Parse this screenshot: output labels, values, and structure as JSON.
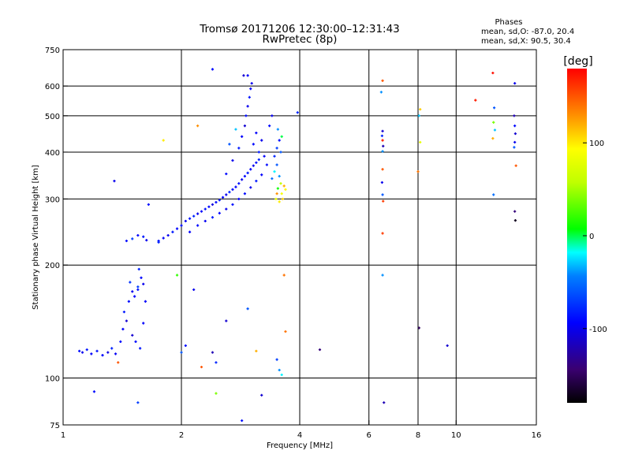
{
  "chart_data": {
    "type": "scatter",
    "title": "Tromsø 20171206 12:30:00–12:31:43",
    "subtitle": "RwPretec (8p)",
    "stats": {
      "heading": "Phases",
      "line1": "mean, sd,O: -87.0, 20.4",
      "line2": "mean, sd,X:  90.5, 30.4"
    },
    "xlabel": "Frequency [MHz]",
    "ylabel": "Stationary phase Virtual Height [km]",
    "xscale": "log",
    "yscale": "log",
    "xlim": [
      1,
      16
    ],
    "ylim": [
      75,
      750
    ],
    "xticks": [
      1,
      2,
      4,
      6,
      8,
      10,
      16
    ],
    "xtick_labels": [
      "1",
      "2",
      "4",
      "6",
      "8",
      "10",
      "16"
    ],
    "yticks": [
      75,
      100,
      200,
      300,
      400,
      500,
      600,
      750
    ],
    "ytick_labels": [
      "75",
      "100",
      "200",
      "300",
      "400",
      "500",
      "600",
      "750"
    ],
    "x_gridlines": [
      1,
      2,
      4,
      6,
      8,
      10,
      16
    ],
    "y_gridlines": [
      100,
      200,
      300,
      400,
      500,
      600
    ],
    "grid": true,
    "colorbar": {
      "label": "[deg]",
      "range": [
        -180,
        180
      ],
      "ticks": [
        100,
        0,
        -100
      ],
      "tick_labels": [
        "100",
        "0",
        "-100"
      ]
    },
    "points": [
      {
        "x": 1.1,
        "y": 118,
        "p": -90
      },
      {
        "x": 1.12,
        "y": 117,
        "p": -100
      },
      {
        "x": 1.15,
        "y": 119,
        "p": -85
      },
      {
        "x": 1.18,
        "y": 116,
        "p": -95
      },
      {
        "x": 1.22,
        "y": 118,
        "p": -88
      },
      {
        "x": 1.26,
        "y": 115,
        "p": -92
      },
      {
        "x": 1.3,
        "y": 117,
        "p": -105
      },
      {
        "x": 1.33,
        "y": 120,
        "p": -80
      },
      {
        "x": 1.36,
        "y": 116,
        "p": -98
      },
      {
        "x": 1.4,
        "y": 125,
        "p": -90
      },
      {
        "x": 1.42,
        "y": 135,
        "p": -95
      },
      {
        "x": 1.45,
        "y": 142,
        "p": -110
      },
      {
        "x": 1.43,
        "y": 150,
        "p": -85
      },
      {
        "x": 1.47,
        "y": 160,
        "p": -90
      },
      {
        "x": 1.5,
        "y": 170,
        "p": -100
      },
      {
        "x": 1.48,
        "y": 180,
        "p": -75
      },
      {
        "x": 1.52,
        "y": 165,
        "p": -95
      },
      {
        "x": 1.55,
        "y": 172,
        "p": -88
      },
      {
        "x": 1.58,
        "y": 185,
        "p": -92
      },
      {
        "x": 1.56,
        "y": 195,
        "p": -80
      },
      {
        "x": 1.6,
        "y": 178,
        "p": -100
      },
      {
        "x": 1.62,
        "y": 160,
        "p": -95
      },
      {
        "x": 1.5,
        "y": 130,
        "p": -110
      },
      {
        "x": 1.53,
        "y": 125,
        "p": -90
      },
      {
        "x": 1.57,
        "y": 120,
        "p": -85
      },
      {
        "x": 1.6,
        "y": 140,
        "p": -95
      },
      {
        "x": 1.45,
        "y": 232,
        "p": -90
      },
      {
        "x": 1.5,
        "y": 235,
        "p": -70
      },
      {
        "x": 1.55,
        "y": 240,
        "p": -95
      },
      {
        "x": 1.6,
        "y": 238,
        "p": -85
      },
      {
        "x": 1.63,
        "y": 233,
        "p": -100
      },
      {
        "x": 1.75,
        "y": 232,
        "p": -90
      },
      {
        "x": 1.8,
        "y": 236,
        "p": -95
      },
      {
        "x": 1.85,
        "y": 240,
        "p": -100
      },
      {
        "x": 1.9,
        "y": 245,
        "p": -85
      },
      {
        "x": 1.95,
        "y": 250,
        "p": -92
      },
      {
        "x": 2.0,
        "y": 255,
        "p": -90
      },
      {
        "x": 2.05,
        "y": 262,
        "p": -98
      },
      {
        "x": 2.1,
        "y": 266,
        "p": -86
      },
      {
        "x": 2.15,
        "y": 270,
        "p": -80
      },
      {
        "x": 2.2,
        "y": 274,
        "p": -100
      },
      {
        "x": 2.25,
        "y": 278,
        "p": -95
      },
      {
        "x": 2.3,
        "y": 282,
        "p": -88
      },
      {
        "x": 2.35,
        "y": 286,
        "p": -92
      },
      {
        "x": 2.4,
        "y": 290,
        "p": -105
      },
      {
        "x": 2.45,
        "y": 294,
        "p": -90
      },
      {
        "x": 2.5,
        "y": 298,
        "p": -85
      },
      {
        "x": 2.55,
        "y": 303,
        "p": -95
      },
      {
        "x": 2.6,
        "y": 308,
        "p": -100
      },
      {
        "x": 2.65,
        "y": 313,
        "p": -80
      },
      {
        "x": 2.7,
        "y": 318,
        "p": -90
      },
      {
        "x": 2.75,
        "y": 323,
        "p": -95
      },
      {
        "x": 2.8,
        "y": 330,
        "p": -88
      },
      {
        "x": 2.85,
        "y": 338,
        "p": -100
      },
      {
        "x": 2.9,
        "y": 345,
        "p": -92
      },
      {
        "x": 2.95,
        "y": 352,
        "p": -85
      },
      {
        "x": 3.0,
        "y": 360,
        "p": -95
      },
      {
        "x": 3.05,
        "y": 368,
        "p": -100
      },
      {
        "x": 3.1,
        "y": 375,
        "p": -90
      },
      {
        "x": 3.15,
        "y": 382,
        "p": -80
      },
      {
        "x": 2.1,
        "y": 245,
        "p": -95
      },
      {
        "x": 2.2,
        "y": 255,
        "p": -90
      },
      {
        "x": 2.3,
        "y": 262,
        "p": -98
      },
      {
        "x": 2.4,
        "y": 268,
        "p": -85
      },
      {
        "x": 2.5,
        "y": 275,
        "p": -92
      },
      {
        "x": 2.6,
        "y": 282,
        "p": -100
      },
      {
        "x": 2.7,
        "y": 290,
        "p": -88
      },
      {
        "x": 2.8,
        "y": 300,
        "p": -95
      },
      {
        "x": 2.9,
        "y": 310,
        "p": -90
      },
      {
        "x": 3.0,
        "y": 322,
        "p": -100
      },
      {
        "x": 3.1,
        "y": 335,
        "p": -85
      },
      {
        "x": 3.2,
        "y": 348,
        "p": -95
      },
      {
        "x": 2.6,
        "y": 350,
        "p": -90
      },
      {
        "x": 2.7,
        "y": 380,
        "p": -100
      },
      {
        "x": 2.8,
        "y": 410,
        "p": -85
      },
      {
        "x": 2.85,
        "y": 440,
        "p": -95
      },
      {
        "x": 2.9,
        "y": 470,
        "p": -110
      },
      {
        "x": 2.92,
        "y": 500,
        "p": -90
      },
      {
        "x": 2.95,
        "y": 530,
        "p": -100
      },
      {
        "x": 2.98,
        "y": 560,
        "p": -85
      },
      {
        "x": 3.0,
        "y": 590,
        "p": -95
      },
      {
        "x": 3.02,
        "y": 610,
        "p": -100
      },
      {
        "x": 2.88,
        "y": 640,
        "p": -110
      },
      {
        "x": 2.95,
        "y": 640,
        "p": -95
      },
      {
        "x": 3.05,
        "y": 420,
        "p": -90
      },
      {
        "x": 3.1,
        "y": 450,
        "p": -95
      },
      {
        "x": 3.15,
        "y": 400,
        "p": -85
      },
      {
        "x": 3.2,
        "y": 430,
        "p": -100
      },
      {
        "x": 3.25,
        "y": 390,
        "p": -95
      },
      {
        "x": 3.3,
        "y": 370,
        "p": -90
      },
      {
        "x": 2.75,
        "y": 460,
        "p": -30
      },
      {
        "x": 2.65,
        "y": 420,
        "p": -60
      },
      {
        "x": 3.4,
        "y": 340,
        "p": -50
      },
      {
        "x": 3.45,
        "y": 355,
        "p": -20
      },
      {
        "x": 3.5,
        "y": 370,
        "p": -60
      },
      {
        "x": 3.55,
        "y": 345,
        "p": -40
      },
      {
        "x": 3.52,
        "y": 320,
        "p": 10
      },
      {
        "x": 3.58,
        "y": 330,
        "p": 60
      },
      {
        "x": 3.6,
        "y": 310,
        "p": 90
      },
      {
        "x": 3.62,
        "y": 300,
        "p": 110
      },
      {
        "x": 3.55,
        "y": 295,
        "p": 100
      },
      {
        "x": 3.65,
        "y": 325,
        "p": 120
      },
      {
        "x": 3.68,
        "y": 318,
        "p": 95
      },
      {
        "x": 3.5,
        "y": 310,
        "p": 130
      },
      {
        "x": 3.48,
        "y": 300,
        "p": 80
      },
      {
        "x": 3.45,
        "y": 390,
        "p": -80
      },
      {
        "x": 3.5,
        "y": 410,
        "p": -70
      },
      {
        "x": 3.55,
        "y": 430,
        "p": -90
      },
      {
        "x": 3.52,
        "y": 460,
        "p": -40
      },
      {
        "x": 3.58,
        "y": 400,
        "p": -60
      },
      {
        "x": 3.4,
        "y": 500,
        "p": -100
      },
      {
        "x": 3.35,
        "y": 470,
        "p": -90
      },
      {
        "x": 3.6,
        "y": 440,
        "p": 0
      },
      {
        "x": 3.95,
        "y": 510,
        "p": -80
      },
      {
        "x": 2.4,
        "y": 665,
        "p": -90
      },
      {
        "x": 2.2,
        "y": 470,
        "p": 130
      },
      {
        "x": 1.8,
        "y": 430,
        "p": 100
      },
      {
        "x": 1.35,
        "y": 335,
        "p": -100
      },
      {
        "x": 1.65,
        "y": 290,
        "p": -90
      },
      {
        "x": 1.75,
        "y": 230,
        "p": -80
      },
      {
        "x": 1.55,
        "y": 175,
        "p": -70
      },
      {
        "x": 1.95,
        "y": 188,
        "p": 20
      },
      {
        "x": 2.15,
        "y": 172,
        "p": -100
      },
      {
        "x": 2.05,
        "y": 122,
        "p": -90
      },
      {
        "x": 2.0,
        "y": 117,
        "p": -60
      },
      {
        "x": 2.4,
        "y": 117,
        "p": -120
      },
      {
        "x": 2.25,
        "y": 107,
        "p": 150
      },
      {
        "x": 2.45,
        "y": 110,
        "p": -80
      },
      {
        "x": 2.6,
        "y": 142,
        "p": -110
      },
      {
        "x": 2.95,
        "y": 153,
        "p": -60
      },
      {
        "x": 3.1,
        "y": 118,
        "p": 120
      },
      {
        "x": 3.5,
        "y": 112,
        "p": -70
      },
      {
        "x": 3.55,
        "y": 105,
        "p": -40
      },
      {
        "x": 3.6,
        "y": 102,
        "p": -20
      },
      {
        "x": 3.65,
        "y": 188,
        "p": 140
      },
      {
        "x": 3.68,
        "y": 133,
        "p": 140
      },
      {
        "x": 4.5,
        "y": 119,
        "p": -140
      },
      {
        "x": 1.2,
        "y": 92,
        "p": -90
      },
      {
        "x": 1.55,
        "y": 86,
        "p": -70
      },
      {
        "x": 2.45,
        "y": 91,
        "p": 40
      },
      {
        "x": 3.2,
        "y": 90,
        "p": -110
      },
      {
        "x": 2.85,
        "y": 77,
        "p": -90
      },
      {
        "x": 1.38,
        "y": 110,
        "p": 150
      },
      {
        "x": 6.5,
        "y": 620,
        "p": 150
      },
      {
        "x": 6.45,
        "y": 578,
        "p": -40
      },
      {
        "x": 6.5,
        "y": 455,
        "p": -110
      },
      {
        "x": 6.48,
        "y": 442,
        "p": -80
      },
      {
        "x": 6.5,
        "y": 430,
        "p": 170
      },
      {
        "x": 6.52,
        "y": 415,
        "p": -120
      },
      {
        "x": 6.5,
        "y": 402,
        "p": -40
      },
      {
        "x": 6.5,
        "y": 360,
        "p": 150
      },
      {
        "x": 6.48,
        "y": 332,
        "p": -100
      },
      {
        "x": 6.5,
        "y": 308,
        "p": -60
      },
      {
        "x": 6.52,
        "y": 296,
        "p": 160
      },
      {
        "x": 6.5,
        "y": 243,
        "p": 160
      },
      {
        "x": 6.5,
        "y": 188,
        "p": -40
      },
      {
        "x": 6.55,
        "y": 86,
        "p": -120
      },
      {
        "x": 8.1,
        "y": 520,
        "p": 110
      },
      {
        "x": 8.05,
        "y": 500,
        "p": -30
      },
      {
        "x": 8.1,
        "y": 425,
        "p": 80
      },
      {
        "x": 8.0,
        "y": 355,
        "p": 140
      },
      {
        "x": 8.05,
        "y": 136,
        "p": -150
      },
      {
        "x": 9.5,
        "y": 122,
        "p": -110
      },
      {
        "x": 11.2,
        "y": 550,
        "p": 170
      },
      {
        "x": 12.4,
        "y": 650,
        "p": 175
      },
      {
        "x": 12.5,
        "y": 525,
        "p": -60
      },
      {
        "x": 12.45,
        "y": 480,
        "p": 40
      },
      {
        "x": 12.55,
        "y": 458,
        "p": -30
      },
      {
        "x": 12.4,
        "y": 435,
        "p": 120
      },
      {
        "x": 12.45,
        "y": 308,
        "p": -50
      },
      {
        "x": 14.1,
        "y": 610,
        "p": -100
      },
      {
        "x": 14.05,
        "y": 500,
        "p": -120
      },
      {
        "x": 14.1,
        "y": 470,
        "p": -90
      },
      {
        "x": 14.15,
        "y": 448,
        "p": -110
      },
      {
        "x": 14.1,
        "y": 425,
        "p": -100
      },
      {
        "x": 14.05,
        "y": 412,
        "p": -60
      },
      {
        "x": 14.2,
        "y": 368,
        "p": 150
      },
      {
        "x": 14.1,
        "y": 278,
        "p": -140
      },
      {
        "x": 14.15,
        "y": 263,
        "p": -170
      }
    ]
  }
}
